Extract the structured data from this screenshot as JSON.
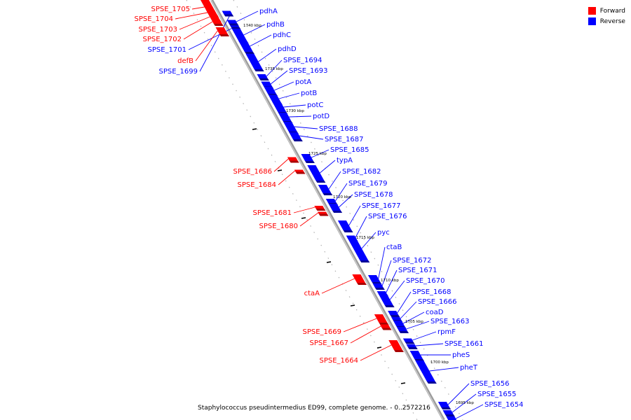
{
  "legend": {
    "forward": {
      "label": "Forward",
      "color": "#ff0000"
    },
    "reverse": {
      "label": "Reverse",
      "color": "#0000ff"
    }
  },
  "caption": "Staphylococcus pseudintermedius ED99, complete genome. - 0..2572216",
  "scale_ticks": [
    "1740 kbp",
    "1735 kbp",
    "1730 kbp",
    "1725 kbp",
    "1720 kbp",
    "1715 kbp",
    "1710 kbp",
    "1705 kbp",
    "1700 kbp",
    "1695 kbp"
  ],
  "genes": [
    {
      "name": "SPSE_1705",
      "strand": "forward"
    },
    {
      "name": "SPSE_1704",
      "strand": "forward"
    },
    {
      "name": "SPSE_1703",
      "strand": "forward"
    },
    {
      "name": "SPSE_1702",
      "strand": "forward"
    },
    {
      "name": "SPSE_1701",
      "strand": "reverse"
    },
    {
      "name": "defB",
      "strand": "forward"
    },
    {
      "name": "SPSE_1699",
      "strand": "reverse"
    },
    {
      "name": "pdhA",
      "strand": "reverse"
    },
    {
      "name": "pdhB",
      "strand": "reverse"
    },
    {
      "name": "pdhC",
      "strand": "reverse"
    },
    {
      "name": "pdhD",
      "strand": "reverse"
    },
    {
      "name": "SPSE_1694",
      "strand": "reverse"
    },
    {
      "name": "SPSE_1693",
      "strand": "reverse"
    },
    {
      "name": "potA",
      "strand": "reverse"
    },
    {
      "name": "potB",
      "strand": "reverse"
    },
    {
      "name": "potC",
      "strand": "reverse"
    },
    {
      "name": "potD",
      "strand": "reverse"
    },
    {
      "name": "SPSE_1688",
      "strand": "reverse"
    },
    {
      "name": "SPSE_1687",
      "strand": "reverse"
    },
    {
      "name": "SPSE_1685",
      "strand": "reverse"
    },
    {
      "name": "SPSE_1686",
      "strand": "forward"
    },
    {
      "name": "SPSE_1684",
      "strand": "forward"
    },
    {
      "name": "typA",
      "strand": "reverse"
    },
    {
      "name": "SPSE_1682",
      "strand": "reverse"
    },
    {
      "name": "SPSE_1679",
      "strand": "reverse"
    },
    {
      "name": "SPSE_1678",
      "strand": "reverse"
    },
    {
      "name": "SPSE_1681",
      "strand": "forward"
    },
    {
      "name": "SPSE_1677",
      "strand": "reverse"
    },
    {
      "name": "SPSE_1680",
      "strand": "forward"
    },
    {
      "name": "SPSE_1676",
      "strand": "reverse"
    },
    {
      "name": "pyc",
      "strand": "reverse"
    },
    {
      "name": "ctaB",
      "strand": "reverse"
    },
    {
      "name": "SPSE_1672",
      "strand": "reverse"
    },
    {
      "name": "SPSE_1671",
      "strand": "reverse"
    },
    {
      "name": "SPSE_1670",
      "strand": "reverse"
    },
    {
      "name": "ctaA",
      "strand": "forward"
    },
    {
      "name": "SPSE_1668",
      "strand": "reverse"
    },
    {
      "name": "SPSE_1666",
      "strand": "reverse"
    },
    {
      "name": "coaD",
      "strand": "reverse"
    },
    {
      "name": "SPSE_1663",
      "strand": "reverse"
    },
    {
      "name": "SPSE_1669",
      "strand": "forward"
    },
    {
      "name": "rpmF",
      "strand": "reverse"
    },
    {
      "name": "SPSE_1667",
      "strand": "forward"
    },
    {
      "name": "SPSE_1661",
      "strand": "reverse"
    },
    {
      "name": "pheS",
      "strand": "reverse"
    },
    {
      "name": "SPSE_1664",
      "strand": "forward"
    },
    {
      "name": "pheT",
      "strand": "reverse"
    },
    {
      "name": "SPSE_1656",
      "strand": "reverse"
    },
    {
      "name": "SPSE_1655",
      "strand": "reverse"
    },
    {
      "name": "SPSE_1654",
      "strand": "reverse"
    }
  ]
}
